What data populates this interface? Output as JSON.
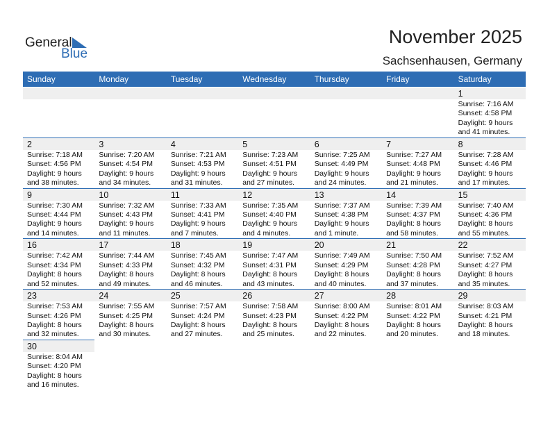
{
  "header": {
    "logo": [
      "General",
      "Blue"
    ],
    "title": "November 2025",
    "subtitle": "Sachsenhausen, Germany"
  },
  "weekdays": [
    "Sunday",
    "Monday",
    "Tuesday",
    "Wednesday",
    "Thursday",
    "Friday",
    "Saturday"
  ],
  "weeks": [
    [
      null,
      null,
      null,
      null,
      null,
      null,
      {
        "day": 1,
        "lines": [
          "Sunrise: 7:16 AM",
          "Sunset: 4:58 PM",
          "Daylight: 9 hours",
          "and 41 minutes."
        ]
      }
    ],
    [
      {
        "day": 2,
        "lines": [
          "Sunrise: 7:18 AM",
          "Sunset: 4:56 PM",
          "Daylight: 9 hours",
          "and 38 minutes."
        ]
      },
      {
        "day": 3,
        "lines": [
          "Sunrise: 7:20 AM",
          "Sunset: 4:54 PM",
          "Daylight: 9 hours",
          "and 34 minutes."
        ]
      },
      {
        "day": 4,
        "lines": [
          "Sunrise: 7:21 AM",
          "Sunset: 4:53 PM",
          "Daylight: 9 hours",
          "and 31 minutes."
        ]
      },
      {
        "day": 5,
        "lines": [
          "Sunrise: 7:23 AM",
          "Sunset: 4:51 PM",
          "Daylight: 9 hours",
          "and 27 minutes."
        ]
      },
      {
        "day": 6,
        "lines": [
          "Sunrise: 7:25 AM",
          "Sunset: 4:49 PM",
          "Daylight: 9 hours",
          "and 24 minutes."
        ]
      },
      {
        "day": 7,
        "lines": [
          "Sunrise: 7:27 AM",
          "Sunset: 4:48 PM",
          "Daylight: 9 hours",
          "and 21 minutes."
        ]
      },
      {
        "day": 8,
        "lines": [
          "Sunrise: 7:28 AM",
          "Sunset: 4:46 PM",
          "Daylight: 9 hours",
          "and 17 minutes."
        ]
      }
    ],
    [
      {
        "day": 9,
        "lines": [
          "Sunrise: 7:30 AM",
          "Sunset: 4:44 PM",
          "Daylight: 9 hours",
          "and 14 minutes."
        ]
      },
      {
        "day": 10,
        "lines": [
          "Sunrise: 7:32 AM",
          "Sunset: 4:43 PM",
          "Daylight: 9 hours",
          "and 11 minutes."
        ]
      },
      {
        "day": 11,
        "lines": [
          "Sunrise: 7:33 AM",
          "Sunset: 4:41 PM",
          "Daylight: 9 hours",
          "and 7 minutes."
        ]
      },
      {
        "day": 12,
        "lines": [
          "Sunrise: 7:35 AM",
          "Sunset: 4:40 PM",
          "Daylight: 9 hours",
          "and 4 minutes."
        ]
      },
      {
        "day": 13,
        "lines": [
          "Sunrise: 7:37 AM",
          "Sunset: 4:38 PM",
          "Daylight: 9 hours",
          "and 1 minute."
        ]
      },
      {
        "day": 14,
        "lines": [
          "Sunrise: 7:39 AM",
          "Sunset: 4:37 PM",
          "Daylight: 8 hours",
          "and 58 minutes."
        ]
      },
      {
        "day": 15,
        "lines": [
          "Sunrise: 7:40 AM",
          "Sunset: 4:36 PM",
          "Daylight: 8 hours",
          "and 55 minutes."
        ]
      }
    ],
    [
      {
        "day": 16,
        "lines": [
          "Sunrise: 7:42 AM",
          "Sunset: 4:34 PM",
          "Daylight: 8 hours",
          "and 52 minutes."
        ]
      },
      {
        "day": 17,
        "lines": [
          "Sunrise: 7:44 AM",
          "Sunset: 4:33 PM",
          "Daylight: 8 hours",
          "and 49 minutes."
        ]
      },
      {
        "day": 18,
        "lines": [
          "Sunrise: 7:45 AM",
          "Sunset: 4:32 PM",
          "Daylight: 8 hours",
          "and 46 minutes."
        ]
      },
      {
        "day": 19,
        "lines": [
          "Sunrise: 7:47 AM",
          "Sunset: 4:31 PM",
          "Daylight: 8 hours",
          "and 43 minutes."
        ]
      },
      {
        "day": 20,
        "lines": [
          "Sunrise: 7:49 AM",
          "Sunset: 4:29 PM",
          "Daylight: 8 hours",
          "and 40 minutes."
        ]
      },
      {
        "day": 21,
        "lines": [
          "Sunrise: 7:50 AM",
          "Sunset: 4:28 PM",
          "Daylight: 8 hours",
          "and 37 minutes."
        ]
      },
      {
        "day": 22,
        "lines": [
          "Sunrise: 7:52 AM",
          "Sunset: 4:27 PM",
          "Daylight: 8 hours",
          "and 35 minutes."
        ]
      }
    ],
    [
      {
        "day": 23,
        "lines": [
          "Sunrise: 7:53 AM",
          "Sunset: 4:26 PM",
          "Daylight: 8 hours",
          "and 32 minutes."
        ]
      },
      {
        "day": 24,
        "lines": [
          "Sunrise: 7:55 AM",
          "Sunset: 4:25 PM",
          "Daylight: 8 hours",
          "and 30 minutes."
        ]
      },
      {
        "day": 25,
        "lines": [
          "Sunrise: 7:57 AM",
          "Sunset: 4:24 PM",
          "Daylight: 8 hours",
          "and 27 minutes."
        ]
      },
      {
        "day": 26,
        "lines": [
          "Sunrise: 7:58 AM",
          "Sunset: 4:23 PM",
          "Daylight: 8 hours",
          "and 25 minutes."
        ]
      },
      {
        "day": 27,
        "lines": [
          "Sunrise: 8:00 AM",
          "Sunset: 4:22 PM",
          "Daylight: 8 hours",
          "and 22 minutes."
        ]
      },
      {
        "day": 28,
        "lines": [
          "Sunrise: 8:01 AM",
          "Sunset: 4:22 PM",
          "Daylight: 8 hours",
          "and 20 minutes."
        ]
      },
      {
        "day": 29,
        "lines": [
          "Sunrise: 8:03 AM",
          "Sunset: 4:21 PM",
          "Daylight: 8 hours",
          "and 18 minutes."
        ]
      }
    ],
    [
      {
        "day": 30,
        "lines": [
          "Sunrise: 8:04 AM",
          "Sunset: 4:20 PM",
          "Daylight: 8 hours",
          "and 16 minutes."
        ]
      }
    ]
  ]
}
